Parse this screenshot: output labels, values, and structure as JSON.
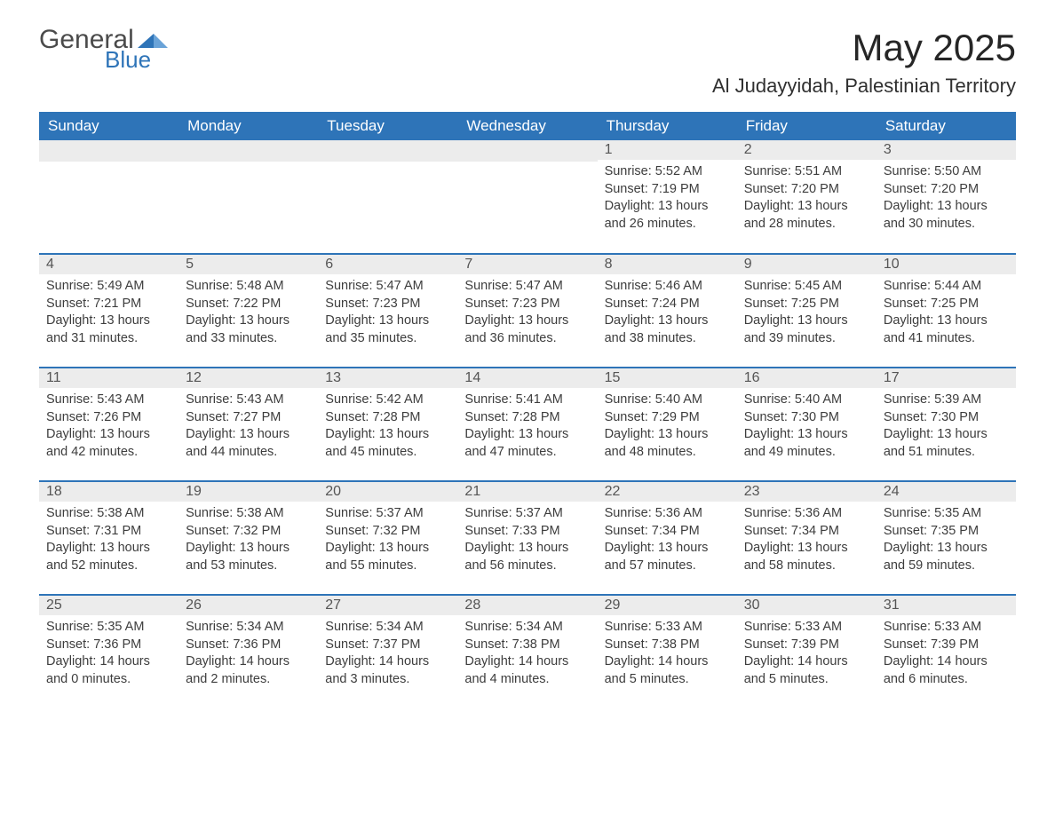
{
  "logo": {
    "general": "General",
    "blue": "Blue",
    "accent_color": "#2e74b8"
  },
  "title": "May 2025",
  "location": "Al Judayyidah, Palestinian Territory",
  "colors": {
    "header_bg": "#2e74b8",
    "header_text": "#ffffff",
    "daynum_bg": "#ececec",
    "row_border": "#2e74b8",
    "body_text": "#3d3d3d"
  },
  "font": {
    "family": "Segoe UI",
    "title_size_pt": 32,
    "location_size_pt": 17,
    "header_size_pt": 13,
    "cell_size_pt": 11
  },
  "weekdays": [
    "Sunday",
    "Monday",
    "Tuesday",
    "Wednesday",
    "Thursday",
    "Friday",
    "Saturday"
  ],
  "weeks": [
    [
      null,
      null,
      null,
      null,
      {
        "d": "1",
        "sr": "Sunrise: 5:52 AM",
        "ss": "Sunset: 7:19 PM",
        "dl": "Daylight: 13 hours and 26 minutes."
      },
      {
        "d": "2",
        "sr": "Sunrise: 5:51 AM",
        "ss": "Sunset: 7:20 PM",
        "dl": "Daylight: 13 hours and 28 minutes."
      },
      {
        "d": "3",
        "sr": "Sunrise: 5:50 AM",
        "ss": "Sunset: 7:20 PM",
        "dl": "Daylight: 13 hours and 30 minutes."
      }
    ],
    [
      {
        "d": "4",
        "sr": "Sunrise: 5:49 AM",
        "ss": "Sunset: 7:21 PM",
        "dl": "Daylight: 13 hours and 31 minutes."
      },
      {
        "d": "5",
        "sr": "Sunrise: 5:48 AM",
        "ss": "Sunset: 7:22 PM",
        "dl": "Daylight: 13 hours and 33 minutes."
      },
      {
        "d": "6",
        "sr": "Sunrise: 5:47 AM",
        "ss": "Sunset: 7:23 PM",
        "dl": "Daylight: 13 hours and 35 minutes."
      },
      {
        "d": "7",
        "sr": "Sunrise: 5:47 AM",
        "ss": "Sunset: 7:23 PM",
        "dl": "Daylight: 13 hours and 36 minutes."
      },
      {
        "d": "8",
        "sr": "Sunrise: 5:46 AM",
        "ss": "Sunset: 7:24 PM",
        "dl": "Daylight: 13 hours and 38 minutes."
      },
      {
        "d": "9",
        "sr": "Sunrise: 5:45 AM",
        "ss": "Sunset: 7:25 PM",
        "dl": "Daylight: 13 hours and 39 minutes."
      },
      {
        "d": "10",
        "sr": "Sunrise: 5:44 AM",
        "ss": "Sunset: 7:25 PM",
        "dl": "Daylight: 13 hours and 41 minutes."
      }
    ],
    [
      {
        "d": "11",
        "sr": "Sunrise: 5:43 AM",
        "ss": "Sunset: 7:26 PM",
        "dl": "Daylight: 13 hours and 42 minutes."
      },
      {
        "d": "12",
        "sr": "Sunrise: 5:43 AM",
        "ss": "Sunset: 7:27 PM",
        "dl": "Daylight: 13 hours and 44 minutes."
      },
      {
        "d": "13",
        "sr": "Sunrise: 5:42 AM",
        "ss": "Sunset: 7:28 PM",
        "dl": "Daylight: 13 hours and 45 minutes."
      },
      {
        "d": "14",
        "sr": "Sunrise: 5:41 AM",
        "ss": "Sunset: 7:28 PM",
        "dl": "Daylight: 13 hours and 47 minutes."
      },
      {
        "d": "15",
        "sr": "Sunrise: 5:40 AM",
        "ss": "Sunset: 7:29 PM",
        "dl": "Daylight: 13 hours and 48 minutes."
      },
      {
        "d": "16",
        "sr": "Sunrise: 5:40 AM",
        "ss": "Sunset: 7:30 PM",
        "dl": "Daylight: 13 hours and 49 minutes."
      },
      {
        "d": "17",
        "sr": "Sunrise: 5:39 AM",
        "ss": "Sunset: 7:30 PM",
        "dl": "Daylight: 13 hours and 51 minutes."
      }
    ],
    [
      {
        "d": "18",
        "sr": "Sunrise: 5:38 AM",
        "ss": "Sunset: 7:31 PM",
        "dl": "Daylight: 13 hours and 52 minutes."
      },
      {
        "d": "19",
        "sr": "Sunrise: 5:38 AM",
        "ss": "Sunset: 7:32 PM",
        "dl": "Daylight: 13 hours and 53 minutes."
      },
      {
        "d": "20",
        "sr": "Sunrise: 5:37 AM",
        "ss": "Sunset: 7:32 PM",
        "dl": "Daylight: 13 hours and 55 minutes."
      },
      {
        "d": "21",
        "sr": "Sunrise: 5:37 AM",
        "ss": "Sunset: 7:33 PM",
        "dl": "Daylight: 13 hours and 56 minutes."
      },
      {
        "d": "22",
        "sr": "Sunrise: 5:36 AM",
        "ss": "Sunset: 7:34 PM",
        "dl": "Daylight: 13 hours and 57 minutes."
      },
      {
        "d": "23",
        "sr": "Sunrise: 5:36 AM",
        "ss": "Sunset: 7:34 PM",
        "dl": "Daylight: 13 hours and 58 minutes."
      },
      {
        "d": "24",
        "sr": "Sunrise: 5:35 AM",
        "ss": "Sunset: 7:35 PM",
        "dl": "Daylight: 13 hours and 59 minutes."
      }
    ],
    [
      {
        "d": "25",
        "sr": "Sunrise: 5:35 AM",
        "ss": "Sunset: 7:36 PM",
        "dl": "Daylight: 14 hours and 0 minutes."
      },
      {
        "d": "26",
        "sr": "Sunrise: 5:34 AM",
        "ss": "Sunset: 7:36 PM",
        "dl": "Daylight: 14 hours and 2 minutes."
      },
      {
        "d": "27",
        "sr": "Sunrise: 5:34 AM",
        "ss": "Sunset: 7:37 PM",
        "dl": "Daylight: 14 hours and 3 minutes."
      },
      {
        "d": "28",
        "sr": "Sunrise: 5:34 AM",
        "ss": "Sunset: 7:38 PM",
        "dl": "Daylight: 14 hours and 4 minutes."
      },
      {
        "d": "29",
        "sr": "Sunrise: 5:33 AM",
        "ss": "Sunset: 7:38 PM",
        "dl": "Daylight: 14 hours and 5 minutes."
      },
      {
        "d": "30",
        "sr": "Sunrise: 5:33 AM",
        "ss": "Sunset: 7:39 PM",
        "dl": "Daylight: 14 hours and 5 minutes."
      },
      {
        "d": "31",
        "sr": "Sunrise: 5:33 AM",
        "ss": "Sunset: 7:39 PM",
        "dl": "Daylight: 14 hours and 6 minutes."
      }
    ]
  ]
}
